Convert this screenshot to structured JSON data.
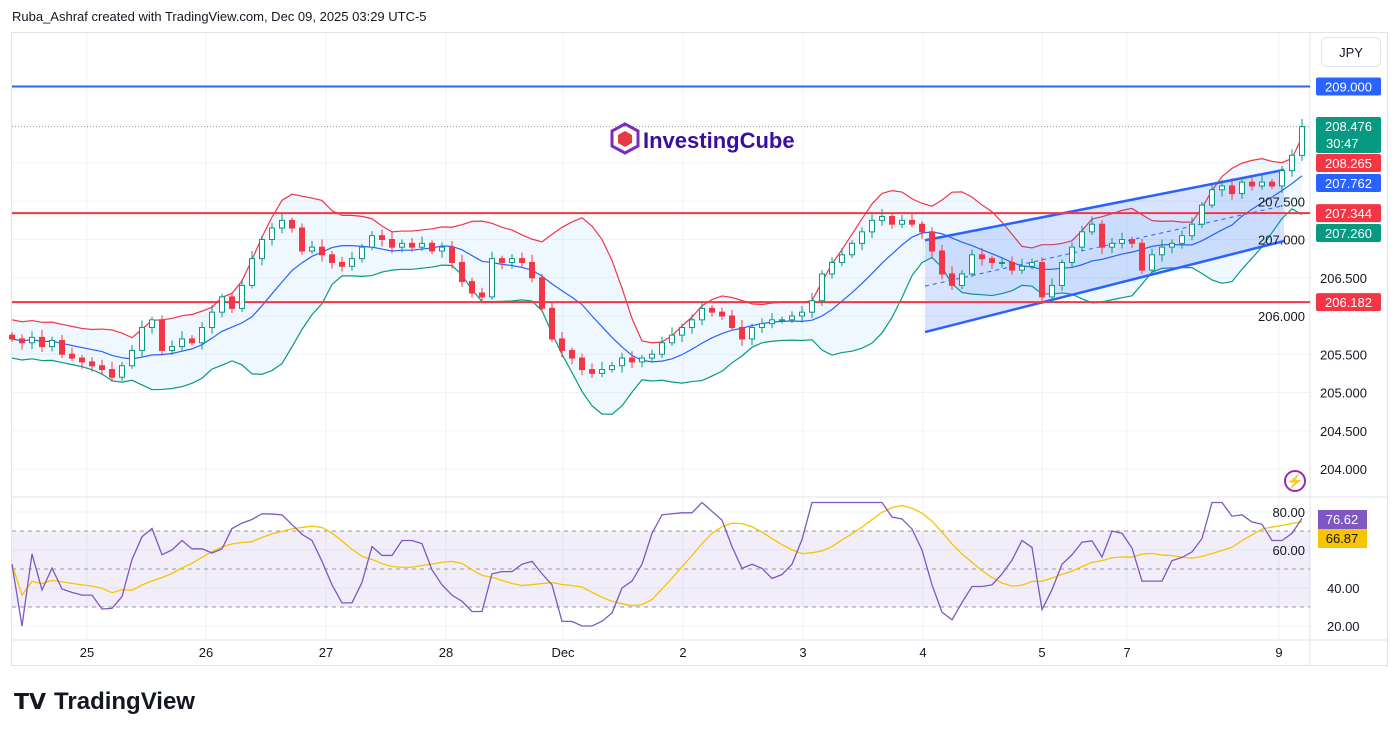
{
  "header": {
    "title": "Ruba_Ashraf created with TradingView.com, Dec 09, 2025 03:29 UTC-5"
  },
  "currency": "JPY",
  "watermark": "InvestingCube",
  "footer": {
    "brand": "TradingView"
  },
  "colors": {
    "up": "#089981",
    "down": "#f23645",
    "blue": "#2962ff",
    "rsi": "#7e57c2",
    "rsi_ma": "#f7c400"
  },
  "icons": {
    "alert": "lightning-bolt-icon"
  },
  "chart_data": [
    {
      "type": "candlestick",
      "ylim": [
        203.6,
        209.7
      ],
      "y_ticks": [
        "204.000",
        "204.500",
        "205.000",
        "205.500",
        "206.000",
        "206.500",
        "207.000",
        "207.500"
      ],
      "x_ticks": [
        {
          "label": "25",
          "bar": 7.5
        },
        {
          "label": "26",
          "bar": 19.4
        },
        {
          "label": "27",
          "bar": 31.4
        },
        {
          "label": "28",
          "bar": 43.4
        },
        {
          "label": "Dec",
          "bar": 55.1
        },
        {
          "label": "2",
          "bar": 67.1
        },
        {
          "label": "3",
          "bar": 79.1
        },
        {
          "label": "4",
          "bar": 91.1
        },
        {
          "label": "5",
          "bar": 103
        },
        {
          "label": "7",
          "bar": 111.5
        },
        {
          "label": "9",
          "bar": 126.7
        }
      ],
      "closes": [
        205.7,
        205.65,
        205.72,
        205.6,
        205.68,
        205.5,
        205.45,
        205.4,
        205.35,
        205.3,
        205.2,
        205.35,
        205.55,
        205.85,
        205.95,
        205.55,
        205.6,
        205.7,
        205.65,
        205.85,
        206.05,
        206.25,
        206.1,
        206.4,
        206.75,
        207.0,
        207.15,
        207.25,
        207.15,
        206.85,
        206.9,
        206.8,
        206.7,
        206.65,
        206.75,
        206.9,
        207.05,
        207.0,
        206.9,
        206.95,
        206.9,
        206.95,
        206.85,
        206.9,
        206.7,
        206.45,
        206.3,
        206.25,
        206.75,
        206.7,
        206.75,
        206.7,
        206.5,
        206.1,
        205.7,
        205.55,
        205.45,
        205.3,
        205.25,
        205.3,
        205.35,
        205.45,
        205.4,
        205.45,
        205.5,
        205.65,
        205.75,
        205.85,
        205.95,
        206.1,
        206.05,
        206.0,
        205.85,
        205.7,
        205.85,
        205.9,
        205.95,
        205.95,
        206.0,
        206.05,
        206.2,
        206.55,
        206.7,
        206.8,
        206.95,
        207.1,
        207.25,
        207.3,
        207.2,
        207.25,
        207.2,
        207.1,
        206.85,
        206.55,
        206.4,
        206.55,
        206.8,
        206.75,
        206.7,
        206.7,
        206.6,
        206.65,
        206.7,
        206.25,
        206.4,
        206.7,
        206.9,
        207.1,
        207.2,
        206.9,
        206.95,
        207.0,
        206.95,
        206.6,
        206.8,
        206.9,
        206.95,
        207.05,
        207.2,
        207.45,
        207.65,
        207.7,
        207.6,
        207.75,
        207.7,
        207.75,
        207.7,
        207.9,
        208.1,
        208.476
      ],
      "hlines": [
        {
          "price": 209.0,
          "label": "209.000",
          "color": "#2962ff"
        },
        {
          "price": 207.344,
          "label": "207.344",
          "color": "#f23645"
        },
        {
          "price": 206.182,
          "label": "206.182",
          "color": "#f23645"
        }
      ],
      "channel": {
        "start_bar": 92,
        "end_bar": 128,
        "upper": [
          206.99,
          207.91
        ],
        "lower": [
          205.79,
          206.98
        ]
      },
      "price_labels": [
        {
          "label": "208.476",
          "sub": "30:47",
          "color": "#089981"
        },
        {
          "label": "208.265",
          "color": "#f23645"
        },
        {
          "label": "207.762",
          "color": "#2962ff"
        },
        {
          "label": "207.260",
          "color": "#089981"
        }
      ],
      "indicators": "Bollinger Bands"
    },
    {
      "type": "line",
      "ylim": [
        14,
        92
      ],
      "y_ticks": [
        "20.00",
        "40.00",
        "60.00",
        "80.00"
      ],
      "bands": [
        70,
        50,
        30
      ],
      "labels": [
        {
          "label": "76.62",
          "color": "#7e57c2"
        },
        {
          "label": "66.87",
          "color": "#f7c400"
        }
      ]
    }
  ]
}
